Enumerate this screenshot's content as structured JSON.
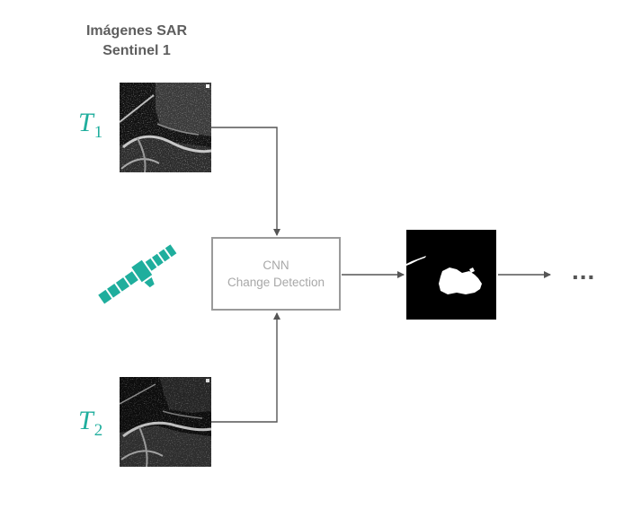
{
  "title": {
    "line1": "Imágenes SAR",
    "line2": "Sentinel 1"
  },
  "inputs": [
    {
      "symbol": "T",
      "subscript": "1"
    },
    {
      "symbol": "T",
      "subscript": "2"
    }
  ],
  "model": {
    "line1": "CNN",
    "line2": "Change Detection"
  },
  "continuation": "...",
  "colors": {
    "accent": "#1fae9d",
    "box_border": "#9a9a9a",
    "box_text": "#a8a8a8",
    "title_text": "#5e5e5e",
    "arrow": "#555555"
  },
  "icons": {
    "satellite": "satellite-icon"
  }
}
